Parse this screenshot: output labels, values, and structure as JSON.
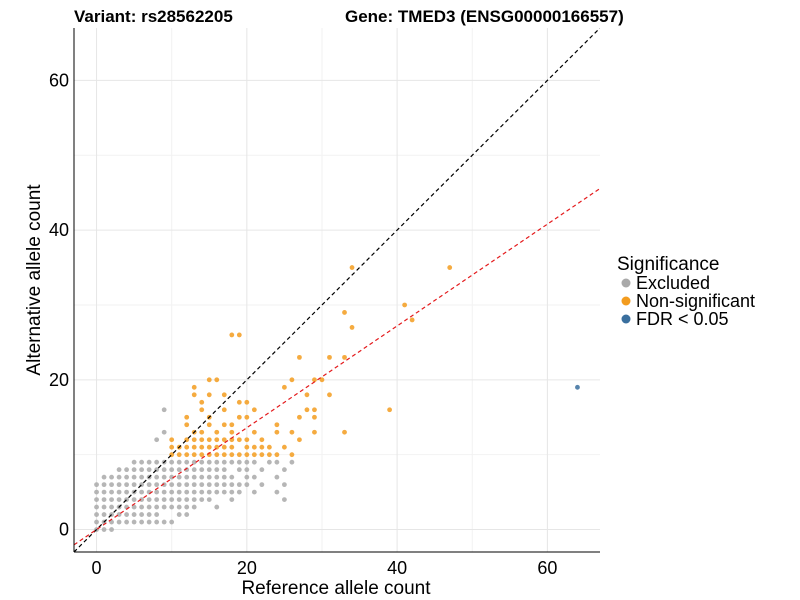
{
  "chart_data": {
    "type": "scatter",
    "title_left": "Variant: rs28562205",
    "title_right": "Gene: TMED3 (ENSG00000166557)",
    "xlabel": "Reference allele count",
    "ylabel": "Alternative allele count",
    "xlim": [
      -3,
      67
    ],
    "ylim": [
      -3,
      67
    ],
    "xticks": [
      0,
      20,
      40,
      60
    ],
    "yticks": [
      0,
      20,
      40,
      60
    ],
    "grid": true,
    "legend": {
      "title": "Significance",
      "position": "right",
      "entries": [
        {
          "label": "Excluded",
          "color": "#a9a9a9"
        },
        {
          "label": "Non-significant",
          "color": "#f39c1f"
        },
        {
          "label": "FDR < 0.05",
          "color": "#3a6f9e"
        }
      ]
    },
    "reference_lines": [
      {
        "name": "identity",
        "slope": 1,
        "intercept": 0,
        "color": "#000000",
        "dash": "dashed"
      },
      {
        "name": "fit",
        "slope": 0.68,
        "intercept": 0,
        "color": "#e41a1c",
        "dash": "dashed"
      }
    ],
    "series": [
      {
        "name": "Excluded",
        "color": "#a9a9a9",
        "points": [
          [
            0,
            0
          ],
          [
            0,
            1
          ],
          [
            0,
            2
          ],
          [
            0,
            3
          ],
          [
            0,
            4
          ],
          [
            0,
            5
          ],
          [
            0,
            6
          ],
          [
            1,
            0
          ],
          [
            1,
            1
          ],
          [
            1,
            2
          ],
          [
            1,
            3
          ],
          [
            1,
            4
          ],
          [
            1,
            5
          ],
          [
            1,
            6
          ],
          [
            1,
            7
          ],
          [
            2,
            0
          ],
          [
            2,
            1
          ],
          [
            2,
            2
          ],
          [
            2,
            3
          ],
          [
            2,
            4
          ],
          [
            2,
            5
          ],
          [
            2,
            6
          ],
          [
            2,
            7
          ],
          [
            3,
            1
          ],
          [
            3,
            2
          ],
          [
            3,
            3
          ],
          [
            3,
            4
          ],
          [
            3,
            5
          ],
          [
            3,
            6
          ],
          [
            3,
            7
          ],
          [
            3,
            8
          ],
          [
            4,
            1
          ],
          [
            4,
            2
          ],
          [
            4,
            3
          ],
          [
            4,
            4
          ],
          [
            4,
            5
          ],
          [
            4,
            6
          ],
          [
            4,
            7
          ],
          [
            4,
            8
          ],
          [
            5,
            1
          ],
          [
            5,
            2
          ],
          [
            5,
            3
          ],
          [
            5,
            4
          ],
          [
            5,
            5
          ],
          [
            5,
            6
          ],
          [
            5,
            7
          ],
          [
            5,
            8
          ],
          [
            5,
            9
          ],
          [
            6,
            1
          ],
          [
            6,
            2
          ],
          [
            6,
            3
          ],
          [
            6,
            4
          ],
          [
            6,
            5
          ],
          [
            6,
            6
          ],
          [
            6,
            7
          ],
          [
            6,
            8
          ],
          [
            6,
            9
          ],
          [
            7,
            1
          ],
          [
            7,
            2
          ],
          [
            7,
            3
          ],
          [
            7,
            4
          ],
          [
            7,
            5
          ],
          [
            7,
            6
          ],
          [
            7,
            7
          ],
          [
            7,
            8
          ],
          [
            7,
            9
          ],
          [
            8,
            1
          ],
          [
            8,
            2
          ],
          [
            8,
            3
          ],
          [
            8,
            4
          ],
          [
            8,
            5
          ],
          [
            8,
            6
          ],
          [
            8,
            7
          ],
          [
            8,
            8
          ],
          [
            8,
            9
          ],
          [
            8,
            12
          ],
          [
            9,
            1
          ],
          [
            9,
            3
          ],
          [
            9,
            4
          ],
          [
            9,
            5
          ],
          [
            9,
            6
          ],
          [
            9,
            7
          ],
          [
            9,
            8
          ],
          [
            9,
            9
          ],
          [
            9,
            13
          ],
          [
            9,
            16
          ],
          [
            10,
            1
          ],
          [
            10,
            3
          ],
          [
            10,
            4
          ],
          [
            10,
            5
          ],
          [
            10,
            6
          ],
          [
            10,
            7
          ],
          [
            10,
            8
          ],
          [
            10,
            9
          ],
          [
            11,
            2
          ],
          [
            11,
            3
          ],
          [
            11,
            4
          ],
          [
            11,
            5
          ],
          [
            11,
            6
          ],
          [
            11,
            7
          ],
          [
            11,
            8
          ],
          [
            11,
            9
          ],
          [
            12,
            2
          ],
          [
            12,
            3
          ],
          [
            12,
            4
          ],
          [
            12,
            5
          ],
          [
            12,
            6
          ],
          [
            12,
            7
          ],
          [
            12,
            8
          ],
          [
            12,
            9
          ],
          [
            13,
            3
          ],
          [
            13,
            4
          ],
          [
            13,
            5
          ],
          [
            13,
            6
          ],
          [
            13,
            7
          ],
          [
            13,
            8
          ],
          [
            13,
            9
          ],
          [
            14,
            4
          ],
          [
            14,
            5
          ],
          [
            14,
            6
          ],
          [
            14,
            7
          ],
          [
            14,
            8
          ],
          [
            14,
            9
          ],
          [
            15,
            4
          ],
          [
            15,
            5
          ],
          [
            15,
            6
          ],
          [
            15,
            7
          ],
          [
            15,
            8
          ],
          [
            15,
            9
          ],
          [
            16,
            3
          ],
          [
            16,
            5
          ],
          [
            16,
            6
          ],
          [
            16,
            7
          ],
          [
            16,
            8
          ],
          [
            16,
            9
          ],
          [
            17,
            5
          ],
          [
            17,
            6
          ],
          [
            17,
            7
          ],
          [
            17,
            8
          ],
          [
            17,
            9
          ],
          [
            18,
            4
          ],
          [
            18,
            5
          ],
          [
            18,
            6
          ],
          [
            18,
            7
          ],
          [
            18,
            9
          ],
          [
            19,
            5
          ],
          [
            19,
            6
          ],
          [
            19,
            8
          ],
          [
            19,
            9
          ],
          [
            20,
            6
          ],
          [
            20,
            7
          ],
          [
            20,
            8
          ],
          [
            20,
            9
          ],
          [
            21,
            5
          ],
          [
            21,
            7
          ],
          [
            21,
            9
          ],
          [
            22,
            6
          ],
          [
            22,
            8
          ],
          [
            23,
            9
          ],
          [
            24,
            5
          ],
          [
            24,
            7
          ],
          [
            24,
            9
          ],
          [
            25,
            4
          ],
          [
            25,
            6
          ],
          [
            25,
            8
          ],
          [
            26,
            9
          ]
        ]
      },
      {
        "name": "Non-significant",
        "color": "#f39c1f",
        "points": [
          [
            10,
            10
          ],
          [
            10,
            11
          ],
          [
            10,
            12
          ],
          [
            11,
            10
          ],
          [
            11,
            11
          ],
          [
            12,
            10
          ],
          [
            12,
            11
          ],
          [
            12,
            12
          ],
          [
            12,
            14
          ],
          [
            12,
            15
          ],
          [
            13,
            10
          ],
          [
            13,
            11
          ],
          [
            13,
            12
          ],
          [
            13,
            13
          ],
          [
            13,
            18
          ],
          [
            13,
            19
          ],
          [
            14,
            10
          ],
          [
            14,
            11
          ],
          [
            14,
            12
          ],
          [
            14,
            13
          ],
          [
            14,
            16
          ],
          [
            14,
            17
          ],
          [
            15,
            10
          ],
          [
            15,
            11
          ],
          [
            15,
            12
          ],
          [
            15,
            14
          ],
          [
            15,
            15
          ],
          [
            15,
            18
          ],
          [
            15,
            20
          ],
          [
            16,
            10
          ],
          [
            16,
            11
          ],
          [
            16,
            12
          ],
          [
            16,
            13
          ],
          [
            16,
            20
          ],
          [
            17,
            10
          ],
          [
            17,
            11
          ],
          [
            17,
            12
          ],
          [
            17,
            14
          ],
          [
            17,
            16
          ],
          [
            17,
            18
          ],
          [
            18,
            10
          ],
          [
            18,
            11
          ],
          [
            18,
            12
          ],
          [
            18,
            13
          ],
          [
            18,
            14
          ],
          [
            18,
            26
          ],
          [
            19,
            10
          ],
          [
            19,
            12
          ],
          [
            19,
            15
          ],
          [
            19,
            17
          ],
          [
            19,
            26
          ],
          [
            20,
            10
          ],
          [
            20,
            11
          ],
          [
            20,
            12
          ],
          [
            20,
            15
          ],
          [
            20,
            17
          ],
          [
            21,
            10
          ],
          [
            21,
            11
          ],
          [
            21,
            13
          ],
          [
            21,
            16
          ],
          [
            22,
            10
          ],
          [
            22,
            11
          ],
          [
            22,
            12
          ],
          [
            23,
            10
          ],
          [
            23,
            11
          ],
          [
            24,
            10
          ],
          [
            24,
            13
          ],
          [
            24,
            14
          ],
          [
            25,
            11
          ],
          [
            25,
            19
          ],
          [
            26,
            10
          ],
          [
            26,
            13
          ],
          [
            26,
            20
          ],
          [
            27,
            12
          ],
          [
            27,
            15
          ],
          [
            27,
            23
          ],
          [
            28,
            16
          ],
          [
            28,
            18
          ],
          [
            29,
            13
          ],
          [
            29,
            15
          ],
          [
            29,
            16
          ],
          [
            29,
            20
          ],
          [
            30,
            20
          ],
          [
            31,
            18
          ],
          [
            31,
            23
          ],
          [
            33,
            13
          ],
          [
            33,
            23
          ],
          [
            33,
            29
          ],
          [
            34,
            27
          ],
          [
            34,
            35
          ],
          [
            39,
            16
          ],
          [
            41,
            30
          ],
          [
            42,
            28
          ],
          [
            47,
            35
          ]
        ]
      },
      {
        "name": "FDR < 0.05",
        "color": "#3a6f9e",
        "points": [
          [
            64,
            19
          ]
        ]
      }
    ]
  }
}
